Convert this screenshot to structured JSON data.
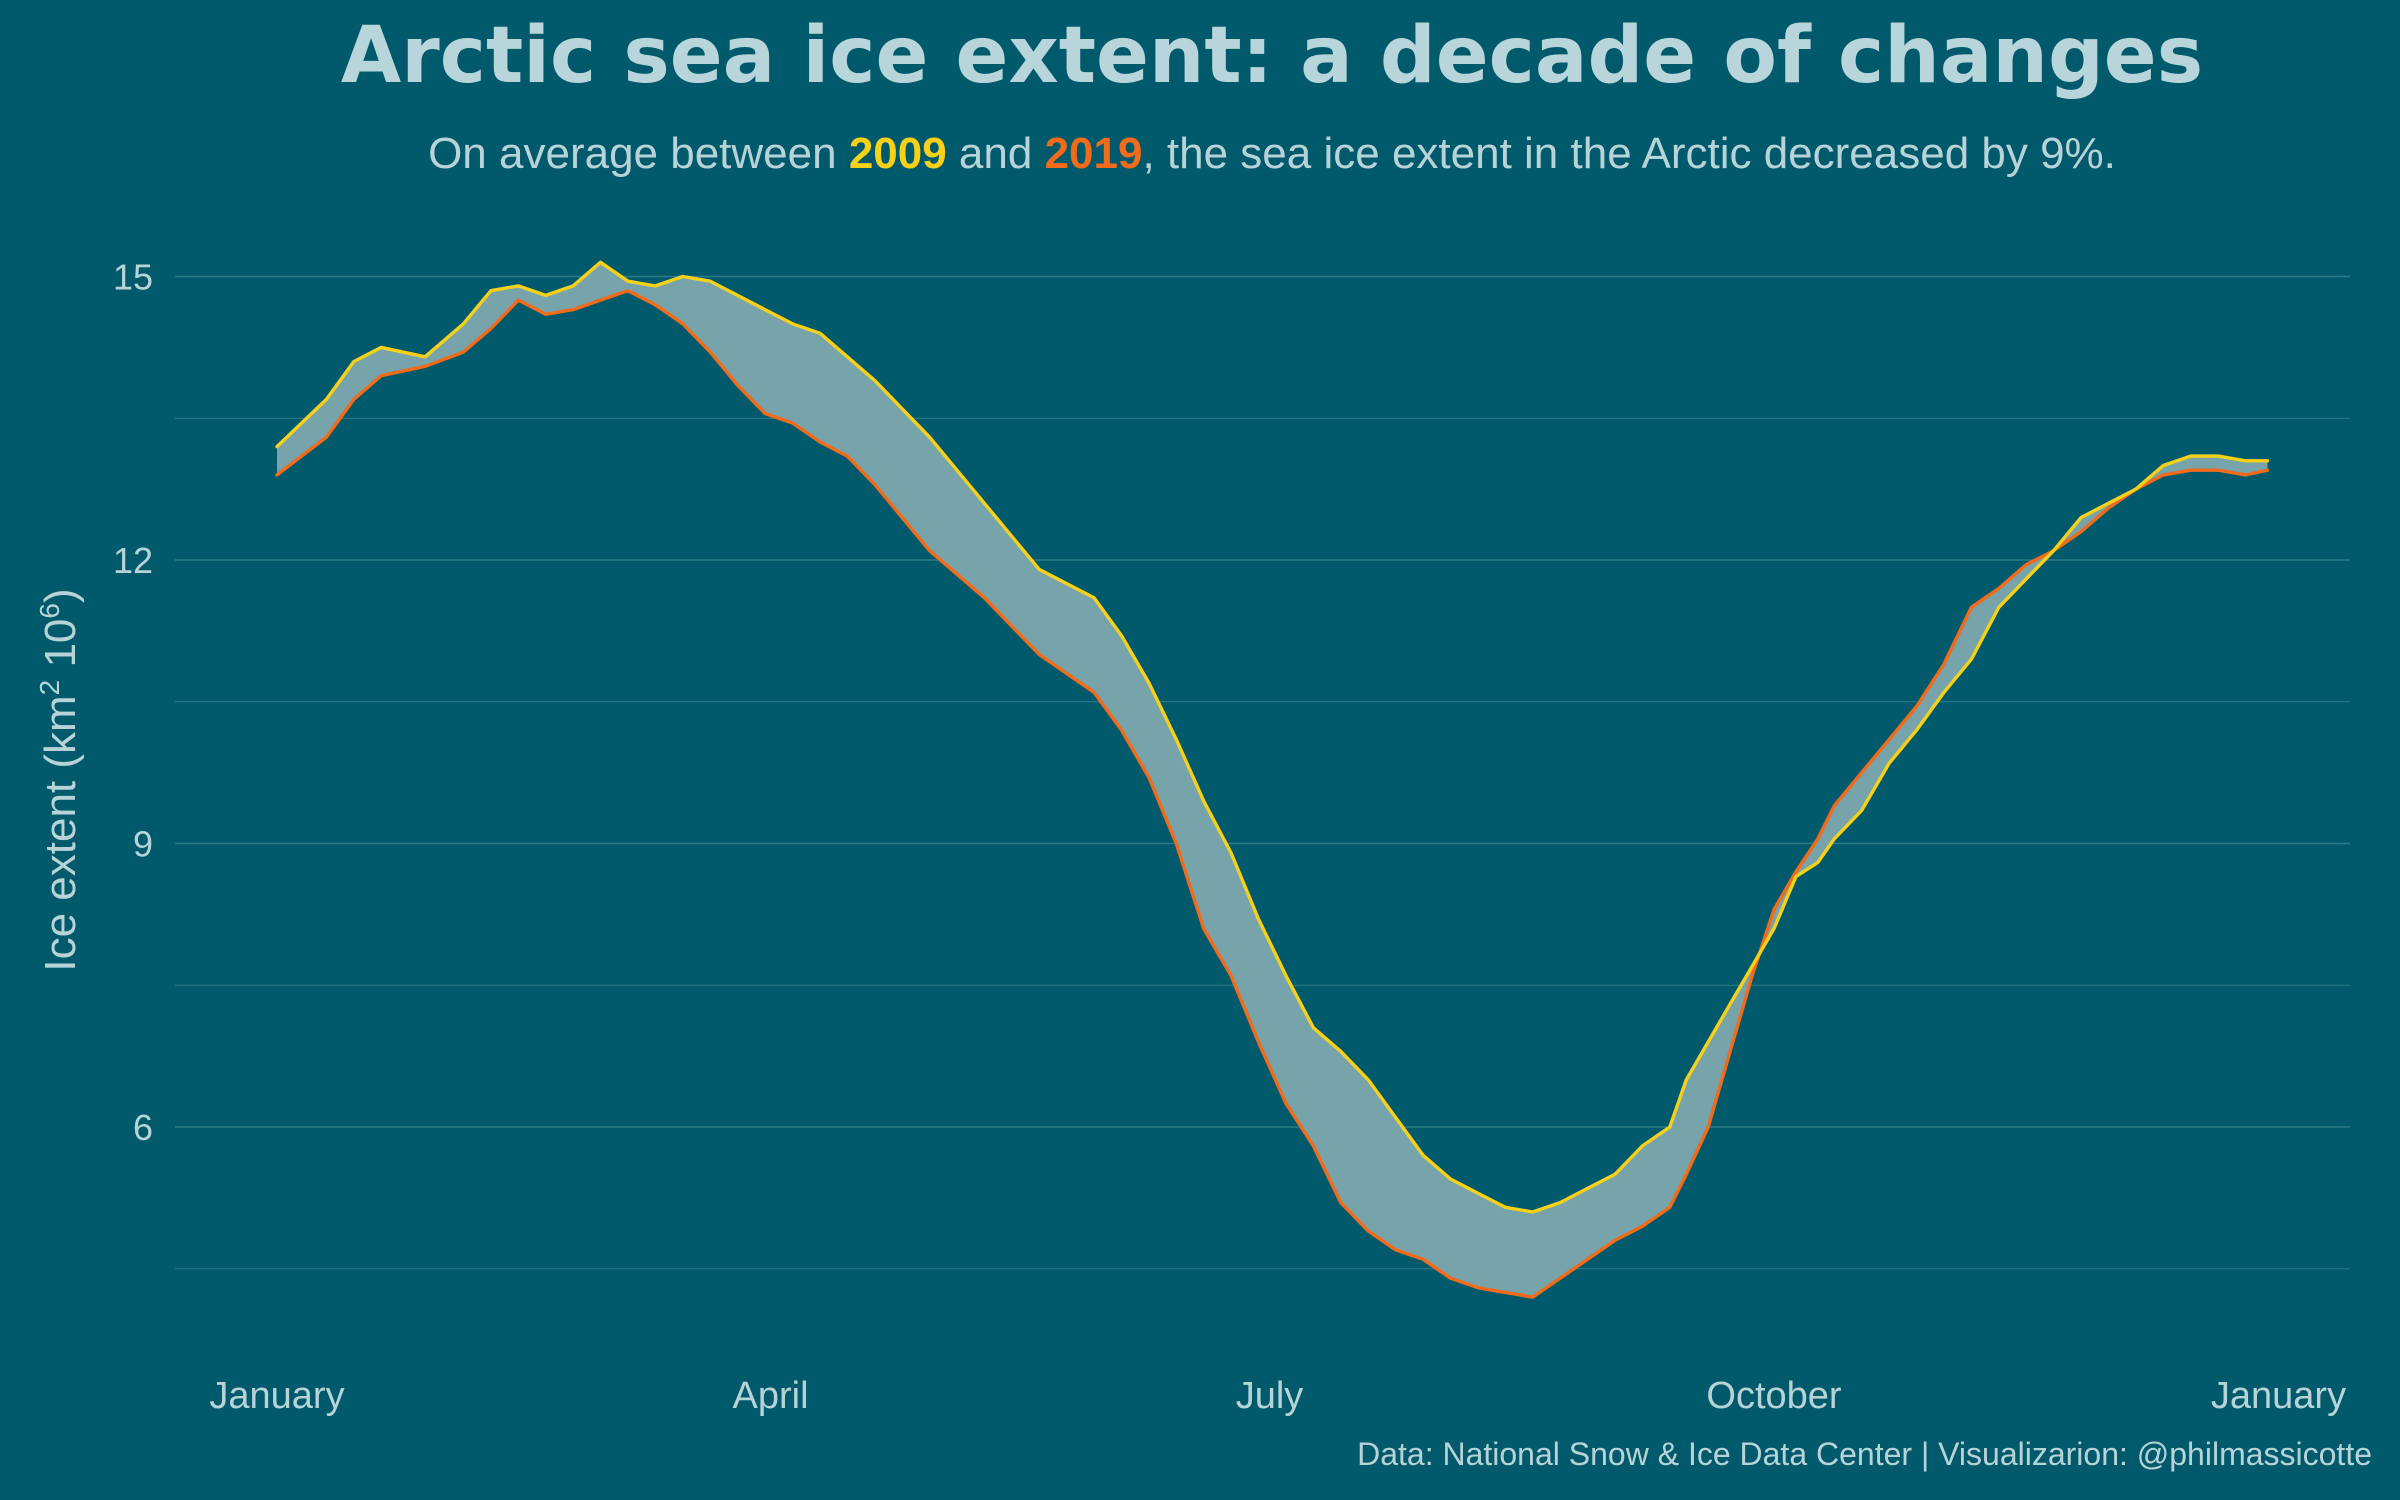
{
  "title": "Arctic sea ice extent: a decade of changes",
  "subtitle": {
    "prefix": "On average between ",
    "year_a": "2009",
    "middle": " and ",
    "year_b": "2019",
    "suffix": ", the sea ice extent in the Arctic decreased by 9%."
  },
  "caption": "Data: National Snow & Ice Data Center | Visualizarion: @philmassicotte",
  "colors": {
    "background": "#005a6b",
    "series_2009": "#f7d019",
    "series_2019": "#f26b1a",
    "ribbon": "#77a3aa",
    "text": "#b7d3d8",
    "title": "#b7d5da",
    "grid": "#2f7a88"
  },
  "chart_data": {
    "type": "area",
    "ylabel": "Ice extent (km² 10⁶)",
    "ylabel_parts": {
      "main": "Ice extent (km",
      "sup1": "2",
      "mid": " 10",
      "sup2": "6",
      "end": ")"
    },
    "xlabel": "",
    "ylim": [
      3.5,
      16
    ],
    "xlim": [
      1,
      365
    ],
    "x_unit": "day of year",
    "yticks": [
      6,
      9,
      12,
      15
    ],
    "xticks": [
      {
        "day": 1,
        "label": "January"
      },
      {
        "day": 91,
        "label": "April"
      },
      {
        "day": 182,
        "label": "July"
      },
      {
        "day": 274,
        "label": "October"
      },
      {
        "day": 366,
        "label": "January"
      }
    ],
    "grid": true,
    "fill_between_series": true,
    "series": [
      {
        "name": "2009",
        "x": [
          1,
          10,
          15,
          20,
          28,
          35,
          40,
          45,
          50,
          55,
          60,
          65,
          70,
          75,
          80,
          85,
          90,
          95,
          100,
          105,
          110,
          115,
          120,
          130,
          140,
          150,
          155,
          160,
          165,
          170,
          175,
          180,
          185,
          190,
          195,
          200,
          205,
          210,
          215,
          220,
          225,
          230,
          235,
          240,
          245,
          250,
          255,
          258,
          262,
          266,
          270,
          274,
          278,
          282,
          285,
          290,
          295,
          300,
          305,
          310,
          315,
          320,
          325,
          330,
          335,
          340,
          345,
          350,
          355,
          360,
          364
        ],
        "values": [
          13.2,
          13.7,
          14.1,
          14.25,
          14.15,
          14.5,
          14.85,
          14.9,
          14.8,
          14.9,
          15.15,
          14.95,
          14.9,
          15.0,
          14.95,
          14.8,
          14.65,
          14.5,
          14.4,
          14.15,
          13.9,
          13.6,
          13.3,
          12.6,
          11.9,
          11.6,
          11.2,
          10.7,
          10.1,
          9.45,
          8.9,
          8.2,
          7.6,
          7.05,
          6.8,
          6.5,
          6.1,
          5.7,
          5.45,
          5.3,
          5.15,
          5.1,
          5.2,
          5.35,
          5.5,
          5.8,
          6.0,
          6.5,
          6.9,
          7.3,
          7.7,
          8.1,
          8.65,
          8.8,
          9.05,
          9.35,
          9.85,
          10.2,
          10.6,
          10.95,
          11.5,
          11.8,
          12.1,
          12.45,
          12.6,
          12.75,
          13.0,
          13.1,
          13.1,
          13.05,
          13.05
        ]
      },
      {
        "name": "2019",
        "x": [
          1,
          10,
          15,
          20,
          28,
          35,
          40,
          45,
          50,
          55,
          60,
          65,
          70,
          75,
          80,
          85,
          90,
          95,
          100,
          105,
          110,
          115,
          120,
          130,
          140,
          150,
          155,
          160,
          165,
          170,
          175,
          180,
          185,
          190,
          195,
          200,
          205,
          210,
          215,
          220,
          225,
          230,
          235,
          240,
          245,
          250,
          255,
          258,
          262,
          266,
          270,
          274,
          278,
          282,
          285,
          290,
          295,
          300,
          305,
          310,
          315,
          320,
          325,
          330,
          335,
          340,
          345,
          350,
          355,
          360,
          364
        ],
        "values": [
          12.9,
          13.3,
          13.7,
          13.95,
          14.05,
          14.2,
          14.45,
          14.75,
          14.6,
          14.65,
          14.75,
          14.85,
          14.7,
          14.5,
          14.2,
          13.85,
          13.55,
          13.45,
          13.25,
          13.1,
          12.8,
          12.45,
          12.1,
          11.6,
          11.0,
          10.6,
          10.2,
          9.7,
          9.0,
          8.1,
          7.6,
          6.9,
          6.25,
          5.8,
          5.2,
          4.9,
          4.7,
          4.6,
          4.4,
          4.3,
          4.25,
          4.2,
          4.4,
          4.6,
          4.8,
          4.95,
          5.15,
          5.5,
          6.0,
          6.8,
          7.6,
          8.3,
          8.7,
          9.05,
          9.4,
          9.75,
          10.1,
          10.45,
          10.9,
          11.5,
          11.7,
          11.95,
          12.1,
          12.3,
          12.55,
          12.75,
          12.9,
          12.95,
          12.95,
          12.9,
          12.95
        ]
      }
    ]
  }
}
